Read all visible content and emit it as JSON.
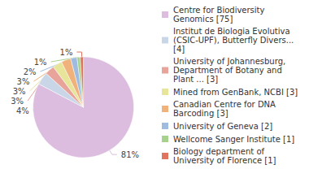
{
  "chart_data": {
    "type": "pie",
    "categories": [
      "Centre for Biodiversity Genomics [75]",
      "Institut de Biologia Evolutiva (CSIC-UPF), Butterfly Divers... [4]",
      "University of Johannesburg, Department of Botany and Plant ... [3]",
      "Mined from GenBank, NCBI [3]",
      "Canadian Centre for DNA Barcoding [3]",
      "University of Geneva [2]",
      "Wellcome Sanger Institute [1]",
      "Biology department of University of Florence [1]"
    ],
    "values": [
      81,
      4,
      3,
      3,
      3,
      2,
      1,
      1
    ],
    "value_labels": [
      "81%",
      "4%",
      "3%",
      "3%",
      "3%",
      "2%",
      "1%",
      "1%"
    ],
    "colors": [
      "#dcbcdf",
      "#c9d6e8",
      "#e8a49a",
      "#e6e59a",
      "#f0b27a",
      "#9fbbe0",
      "#a7d28d",
      "#e0745e"
    ],
    "data_labels": true,
    "legend": "right"
  }
}
